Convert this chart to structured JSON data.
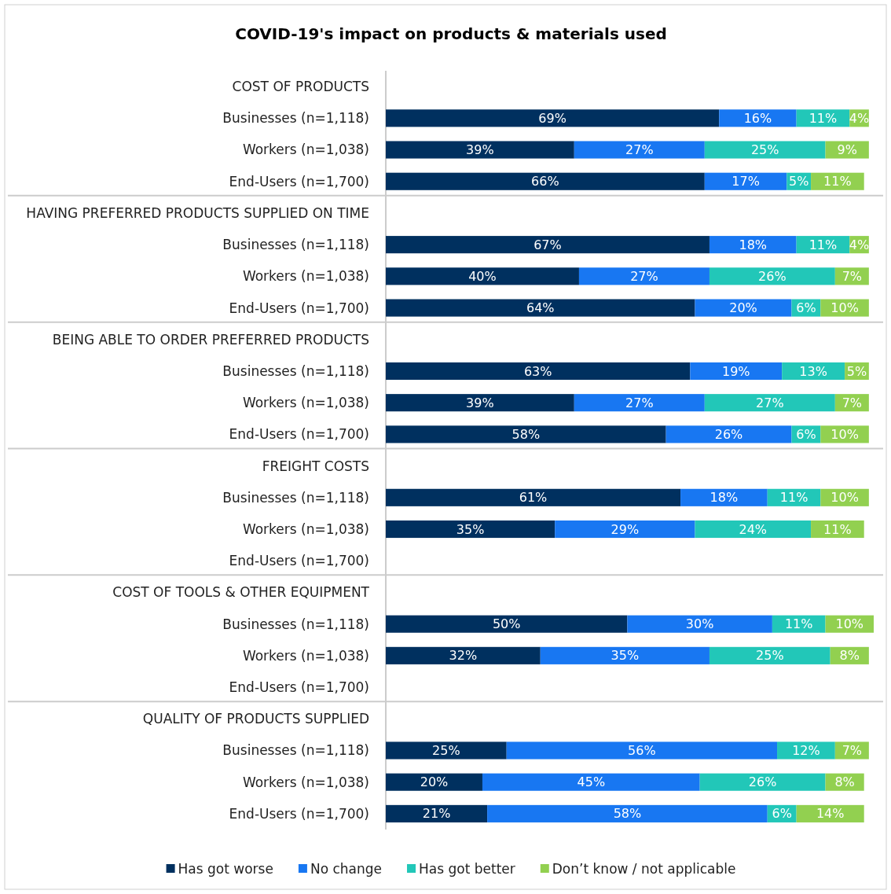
{
  "chart_data": {
    "type": "bar",
    "orientation": "horizontal",
    "stacked": true,
    "title": "COVID-19's impact on products & materials used",
    "legend": "bottom",
    "categories": [
      "COST OF PRODUCTS",
      "Businesses (n=1,118)",
      "Workers (n=1,038)",
      "End-Users (n=1,700)",
      "HAVING PREFERRED PRODUCTS SUPPLIED ON TIME",
      "Businesses (n=1,118)",
      "Workers (n=1,038)",
      "End-Users (n=1,700)",
      "BEING ABLE TO ORDER PREFERRED PRODUCTS",
      "Businesses (n=1,118)",
      "Workers (n=1,038)",
      "End-Users (n=1,700)",
      "FREIGHT COSTS",
      "Businesses (n=1,118)",
      "Workers (n=1,038)",
      "End-Users (n=1,700)",
      "COST OF TOOLS & OTHER EQUIPMENT",
      "Businesses (n=1,118)",
      "Workers (n=1,038)",
      "End-Users (n=1,700)",
      "QUALITY OF PRODUCTS SUPPLIED",
      "Businesses (n=1,118)",
      "Workers (n=1,038)",
      "End-Users (n=1,700)"
    ],
    "series": [
      {
        "name": "Has got worse",
        "color": "#00305f",
        "values": [
          null,
          69,
          39,
          66,
          null,
          67,
          40,
          64,
          null,
          63,
          39,
          58,
          null,
          61,
          35,
          null,
          null,
          50,
          32,
          null,
          null,
          25,
          20,
          21
        ],
        "value_labels": [
          null,
          "69%",
          "39%",
          "66%",
          null,
          "67%",
          "40%",
          "64%",
          null,
          "63%",
          "39%",
          "58%",
          null,
          "61%",
          "35%",
          null,
          null,
          "50%",
          "32%",
          null,
          null,
          "25%",
          "20%",
          "21%"
        ]
      },
      {
        "name": "No change",
        "color": "#1877f2",
        "values": [
          null,
          16,
          27,
          17,
          null,
          18,
          27,
          20,
          null,
          19,
          27,
          26,
          null,
          18,
          29,
          null,
          null,
          30,
          35,
          null,
          null,
          56,
          45,
          58
        ],
        "value_labels": [
          null,
          "16%",
          "27%",
          "17%",
          null,
          "18%",
          "27%",
          "20%",
          null,
          "19%",
          "27%",
          "26%",
          null,
          "18%",
          "29%",
          null,
          null,
          "30%",
          "35%",
          null,
          null,
          "56%",
          "45%",
          "58%"
        ]
      },
      {
        "name": "Has got better",
        "color": "#22c7b8",
        "values": [
          null,
          11,
          25,
          5,
          null,
          11,
          26,
          6,
          null,
          13,
          27,
          6,
          null,
          11,
          24,
          null,
          null,
          11,
          25,
          null,
          null,
          12,
          26,
          6
        ],
        "value_labels": [
          null,
          "11%",
          "25%",
          "5%",
          null,
          "11%",
          "26%",
          "6%",
          null,
          "13%",
          "27%",
          "6%",
          null,
          "11%",
          "24%",
          null,
          null,
          "11%",
          "25%",
          null,
          null,
          "12%",
          "26%",
          "6%"
        ]
      },
      {
        "name": "Don’t know / not applicable",
        "color": "#92d050",
        "values": [
          null,
          4,
          9,
          11,
          null,
          4,
          7,
          10,
          null,
          5,
          7,
          10,
          null,
          10,
          11,
          null,
          null,
          10,
          8,
          null,
          null,
          7,
          8,
          14
        ],
        "value_labels": [
          null,
          "4%",
          "9%",
          "11%",
          null,
          "4%",
          "7%",
          "10%",
          null,
          "5%",
          "7%",
          "10%",
          null,
          "10%",
          "11%",
          null,
          null,
          "10%",
          "8%",
          null,
          null,
          "7%",
          "8%",
          "14%"
        ]
      }
    ]
  }
}
